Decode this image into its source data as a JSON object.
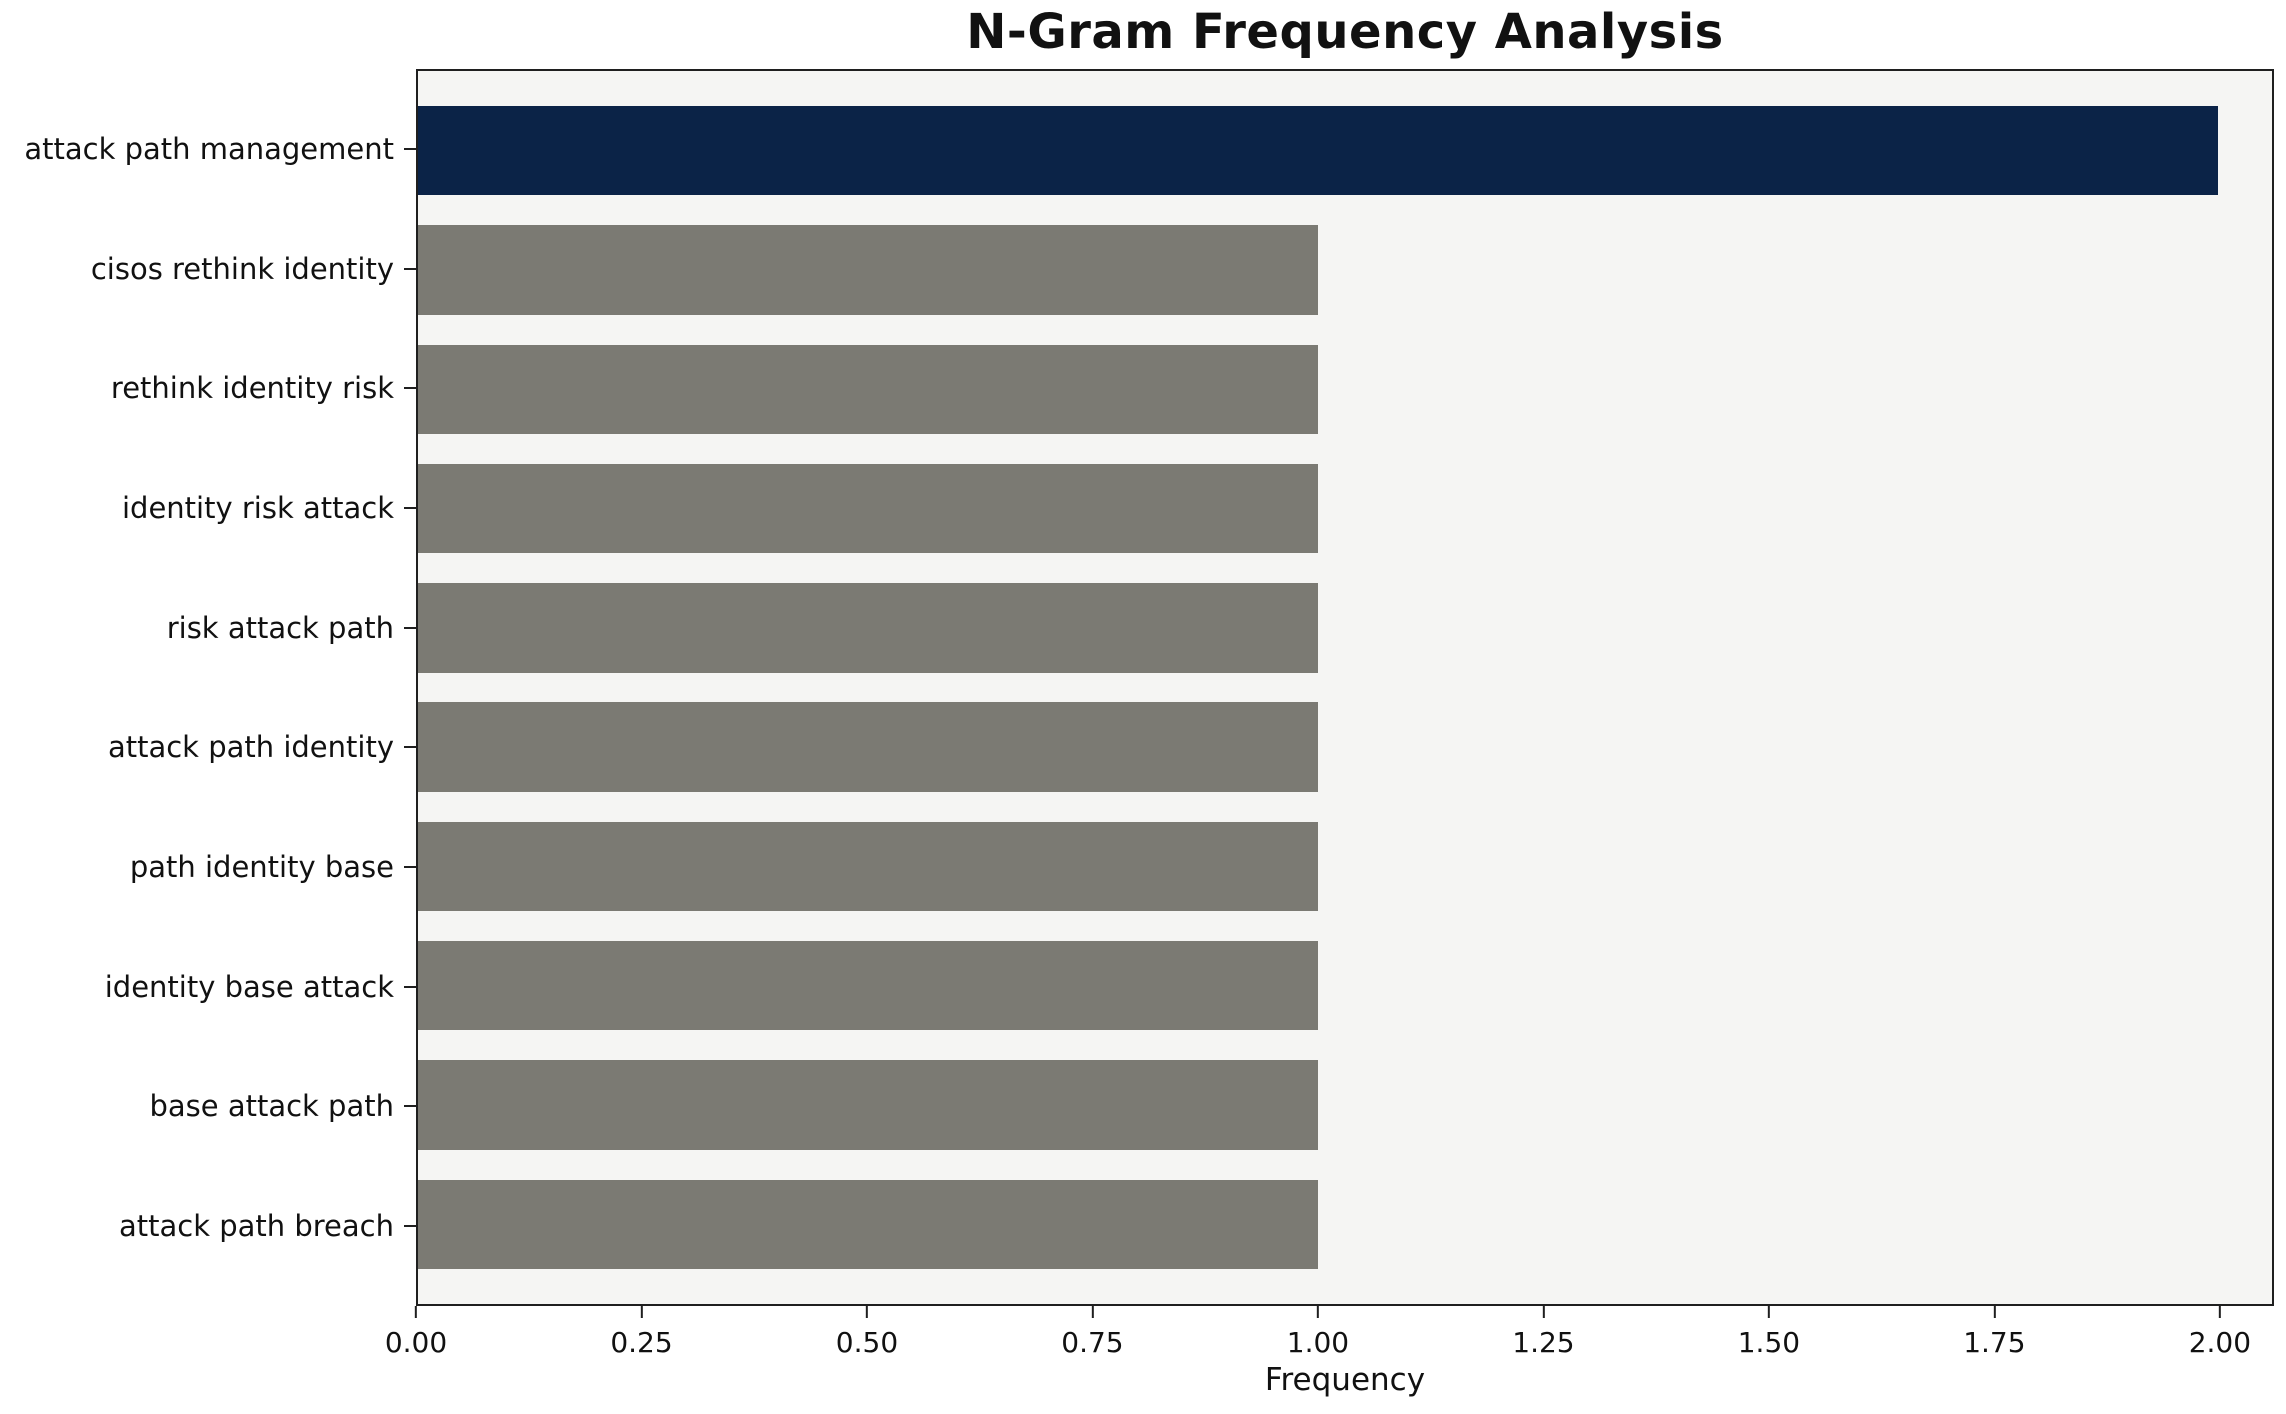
{
  "page": {
    "title": "N-Gram Frequency Analysis"
  },
  "chart_data": {
    "type": "bar",
    "orientation": "horizontal",
    "title": "N-Gram Frequency Analysis",
    "xlabel": "Frequency",
    "ylabel": "",
    "categories": [
      "attack path management",
      "cisos rethink identity",
      "rethink identity risk",
      "identity risk attack",
      "risk attack path",
      "attack path identity",
      "path identity base",
      "identity base attack",
      "base attack path",
      "attack path breach"
    ],
    "values": [
      2,
      1,
      1,
      1,
      1,
      1,
      1,
      1,
      1,
      1
    ],
    "bar_colors": [
      "#0b2347",
      "#7b7a73",
      "#7b7a73",
      "#7b7a73",
      "#7b7a73",
      "#7b7a73",
      "#7b7a73",
      "#7b7a73",
      "#7b7a73",
      "#7b7a73"
    ],
    "xlim": [
      0,
      2.06
    ],
    "x_ticks": [
      0.0,
      0.25,
      0.5,
      0.75,
      1.0,
      1.25,
      1.5,
      1.75,
      2.0
    ],
    "x_tick_labels": [
      "0.00",
      "0.25",
      "0.50",
      "0.75",
      "1.00",
      "1.25",
      "1.50",
      "1.75",
      "2.00"
    ],
    "grid": false,
    "legend": "none",
    "colors": {
      "highlight": "#0b2347",
      "default": "#7b7a73",
      "plot_background": "#f5f5f3",
      "axis": "#1f1f1f",
      "text": "#111111"
    }
  }
}
